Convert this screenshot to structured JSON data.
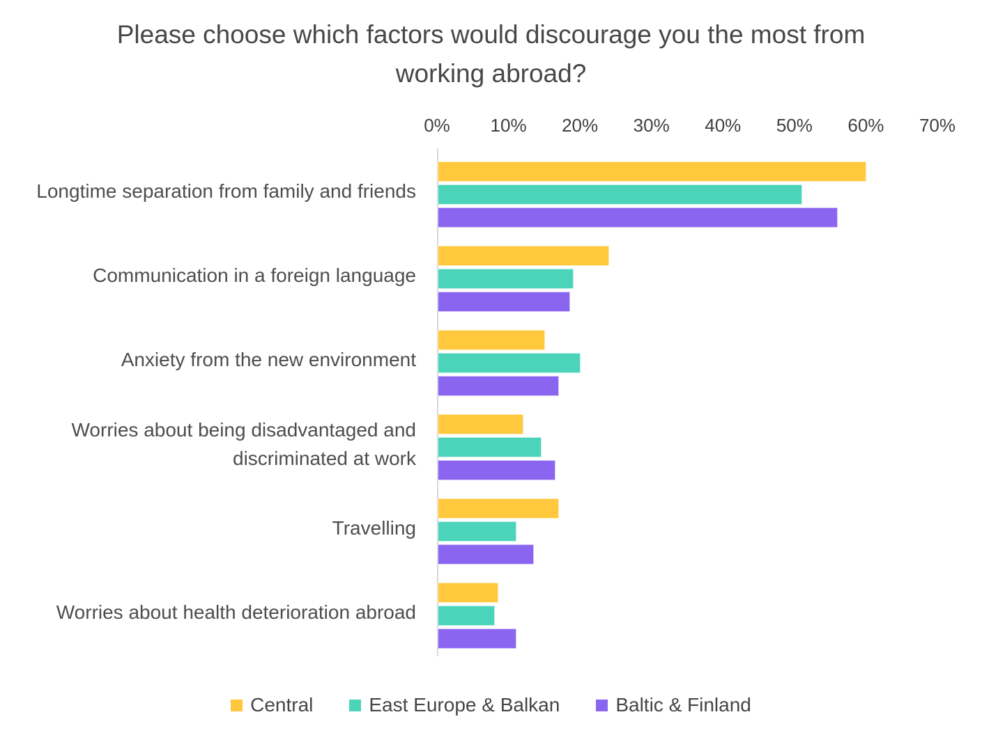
{
  "chart_data": {
    "type": "bar",
    "orientation": "horizontal",
    "title": "Please choose which factors would discourage you the most from working abroad?",
    "categories": [
      "Longtime separation from family and friends",
      "Communication in a foreign language",
      "Anxiety from the new environment",
      "Worries about being disadvantaged and discriminated at work",
      "Travelling",
      "Worries about health deterioration abroad"
    ],
    "series": [
      {
        "name": "Central",
        "color": "#FFC83D",
        "values": [
          60,
          24,
          15,
          12,
          17,
          8.5
        ]
      },
      {
        "name": "East Europe & Balkan",
        "color": "#4BD4B9",
        "values": [
          51,
          19,
          20,
          14.5,
          11,
          8
        ]
      },
      {
        "name": "Baltic & Finland",
        "color": "#8A66F0",
        "values": [
          56,
          18.5,
          17,
          16.5,
          13.5,
          11
        ]
      }
    ],
    "x_axis": {
      "ticks": [
        "0%",
        "10%",
        "20%",
        "30%",
        "40%",
        "50%",
        "60%",
        "70%"
      ],
      "min": 0,
      "max": 70,
      "unit": "%"
    },
    "ylabel": "",
    "xlabel": "",
    "grid": false,
    "legend_position": "bottom",
    "colors": {
      "title_text": "#474747",
      "axis_line": "#d9d9d9",
      "tick_text": "#404040",
      "category_text": "#4d4d4d",
      "background": "#ffffff"
    }
  }
}
